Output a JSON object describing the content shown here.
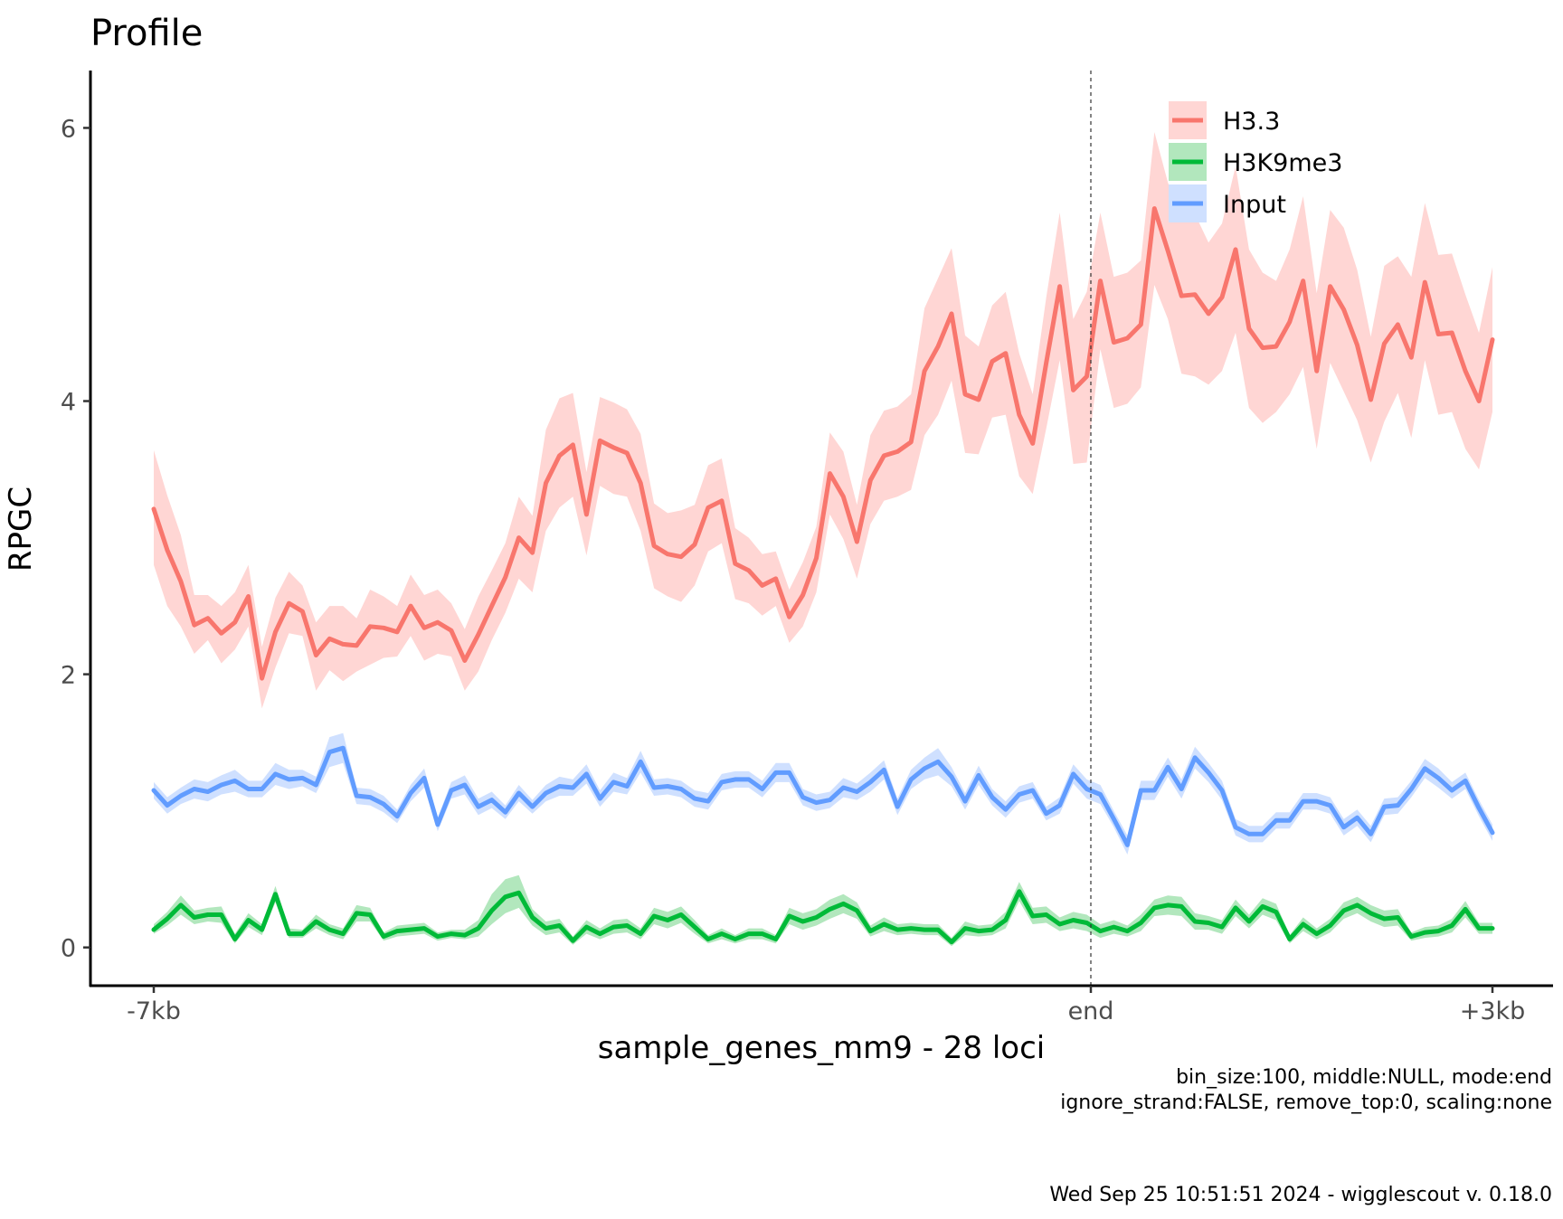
{
  "chart_data": {
    "type": "line",
    "title": "Profile",
    "xlabel": "sample_genes_mm9 - 28 loci",
    "ylabel": "RPGC",
    "x_range": [
      0,
      100
    ],
    "ylim": [
      -0.28,
      6.42
    ],
    "x_ticks": [
      {
        "x": 0,
        "label": "-7kb"
      },
      {
        "x": 70,
        "label": "end"
      },
      {
        "x": 100,
        "label": "+3kb"
      }
    ],
    "y_ticks": [
      0,
      2,
      4,
      6
    ],
    "reference_line": {
      "x": 70,
      "label": "end",
      "style": "dashed"
    },
    "grid": false,
    "legend": {
      "position": "top-right",
      "entries": [
        "H3.3",
        "H3K9me3",
        "Input"
      ]
    },
    "series": [
      {
        "name": "H3.3",
        "color": "#F8766D",
        "band_color": "#FFD6D4",
        "values": [
          3.21,
          2.91,
          2.68,
          2.36,
          2.41,
          2.3,
          2.38,
          2.57,
          1.97,
          2.31,
          2.52,
          2.46,
          2.14,
          2.26,
          2.22,
          2.21,
          2.35,
          2.34,
          2.31,
          2.5,
          2.34,
          2.38,
          2.32,
          2.1,
          2.29,
          2.5,
          2.71,
          3.0,
          2.89,
          3.4,
          3.6,
          3.68,
          3.17,
          3.71,
          3.66,
          3.62,
          3.4,
          2.94,
          2.88,
          2.86,
          2.95,
          3.22,
          3.27,
          2.81,
          2.76,
          2.65,
          2.7,
          2.42,
          2.58,
          2.85,
          3.47,
          3.3,
          2.97,
          3.42,
          3.6,
          3.63,
          3.7,
          4.22,
          4.4,
          4.64,
          4.05,
          4.01,
          4.29,
          4.35,
          3.9,
          3.69,
          4.28,
          4.84,
          4.08,
          4.18,
          4.88,
          4.43,
          4.46,
          4.56,
          5.41,
          5.1,
          4.77,
          4.78,
          4.64,
          4.76,
          5.11,
          4.53,
          4.39,
          4.4,
          4.58,
          4.88,
          4.22,
          4.84,
          4.67,
          4.41,
          4.01,
          4.42,
          4.56,
          4.32,
          4.87,
          4.49,
          4.5,
          4.22,
          4.0,
          4.45
        ],
        "lower": [
          2.8,
          2.5,
          2.35,
          2.15,
          2.25,
          2.08,
          2.18,
          2.35,
          1.75,
          2.05,
          2.3,
          2.28,
          1.88,
          2.03,
          1.95,
          2.02,
          2.07,
          2.12,
          2.13,
          2.28,
          2.1,
          2.15,
          2.13,
          1.88,
          2.02,
          2.25,
          2.45,
          2.7,
          2.6,
          3.05,
          3.22,
          3.3,
          2.87,
          3.38,
          3.32,
          3.3,
          3.05,
          2.63,
          2.57,
          2.53,
          2.65,
          2.9,
          2.96,
          2.55,
          2.52,
          2.43,
          2.5,
          2.23,
          2.35,
          2.6,
          3.17,
          2.99,
          2.7,
          3.1,
          3.27,
          3.3,
          3.35,
          3.75,
          3.9,
          4.15,
          3.62,
          3.61,
          3.88,
          3.9,
          3.45,
          3.32,
          3.8,
          4.3,
          3.54,
          3.55,
          4.38,
          3.95,
          3.98,
          4.1,
          4.85,
          4.6,
          4.2,
          4.18,
          4.12,
          4.22,
          4.5,
          3.95,
          3.84,
          3.92,
          4.05,
          4.25,
          3.65,
          4.28,
          4.07,
          3.86,
          3.55,
          3.85,
          4.06,
          3.73,
          4.3,
          3.9,
          3.92,
          3.65,
          3.5,
          3.92
        ],
        "upper": [
          3.64,
          3.31,
          3.02,
          2.58,
          2.58,
          2.5,
          2.6,
          2.8,
          2.2,
          2.56,
          2.75,
          2.65,
          2.38,
          2.5,
          2.5,
          2.41,
          2.62,
          2.57,
          2.5,
          2.73,
          2.58,
          2.62,
          2.52,
          2.33,
          2.57,
          2.76,
          2.96,
          3.3,
          3.16,
          3.79,
          4.02,
          4.06,
          3.48,
          4.03,
          3.99,
          3.94,
          3.76,
          3.25,
          3.18,
          3.2,
          3.24,
          3.53,
          3.58,
          3.07,
          3.0,
          2.88,
          2.9,
          2.62,
          2.82,
          3.08,
          3.77,
          3.63,
          3.24,
          3.75,
          3.93,
          3.96,
          4.05,
          4.68,
          4.9,
          5.12,
          4.48,
          4.4,
          4.7,
          4.8,
          4.35,
          4.05,
          4.76,
          5.38,
          4.6,
          4.8,
          5.38,
          4.91,
          4.94,
          5.03,
          5.97,
          5.6,
          5.34,
          5.37,
          5.16,
          5.3,
          5.72,
          5.11,
          4.94,
          4.88,
          5.11,
          5.5,
          4.79,
          5.4,
          5.27,
          4.96,
          4.47,
          4.99,
          5.06,
          4.91,
          5.45,
          5.07,
          5.08,
          4.78,
          4.5,
          4.98
        ]
      },
      {
        "name": "H3K9me3",
        "color": "#00BA38",
        "band_color": "#B2E7BD",
        "values": [
          0.13,
          0.21,
          0.31,
          0.22,
          0.24,
          0.24,
          0.06,
          0.2,
          0.13,
          0.39,
          0.1,
          0.1,
          0.19,
          0.13,
          0.1,
          0.25,
          0.24,
          0.08,
          0.12,
          0.13,
          0.14,
          0.08,
          0.1,
          0.09,
          0.14,
          0.27,
          0.37,
          0.4,
          0.22,
          0.14,
          0.16,
          0.05,
          0.15,
          0.1,
          0.15,
          0.16,
          0.1,
          0.23,
          0.2,
          0.24,
          0.15,
          0.06,
          0.1,
          0.06,
          0.1,
          0.1,
          0.06,
          0.23,
          0.19,
          0.22,
          0.28,
          0.32,
          0.27,
          0.12,
          0.17,
          0.13,
          0.14,
          0.13,
          0.13,
          0.04,
          0.14,
          0.12,
          0.13,
          0.2,
          0.41,
          0.23,
          0.24,
          0.17,
          0.2,
          0.18,
          0.12,
          0.15,
          0.12,
          0.18,
          0.29,
          0.31,
          0.3,
          0.19,
          0.18,
          0.15,
          0.29,
          0.19,
          0.3,
          0.26,
          0.06,
          0.17,
          0.1,
          0.16,
          0.27,
          0.31,
          0.25,
          0.21,
          0.22,
          0.08,
          0.11,
          0.12,
          0.16,
          0.28,
          0.14,
          0.14
        ],
        "lower": [
          0.1,
          0.16,
          0.24,
          0.17,
          0.19,
          0.18,
          0.03,
          0.15,
          0.09,
          0.33,
          0.07,
          0.07,
          0.14,
          0.09,
          0.06,
          0.19,
          0.19,
          0.05,
          0.08,
          0.09,
          0.1,
          0.05,
          0.07,
          0.06,
          0.08,
          0.17,
          0.25,
          0.29,
          0.16,
          0.09,
          0.11,
          0.02,
          0.1,
          0.06,
          0.1,
          0.11,
          0.06,
          0.17,
          0.14,
          0.18,
          0.1,
          0.03,
          0.06,
          0.03,
          0.06,
          0.06,
          0.03,
          0.17,
          0.13,
          0.16,
          0.21,
          0.25,
          0.21,
          0.08,
          0.12,
          0.09,
          0.1,
          0.09,
          0.09,
          0.01,
          0.09,
          0.08,
          0.09,
          0.14,
          0.34,
          0.17,
          0.18,
          0.12,
          0.14,
          0.12,
          0.07,
          0.1,
          0.08,
          0.12,
          0.23,
          0.24,
          0.23,
          0.13,
          0.13,
          0.1,
          0.23,
          0.14,
          0.24,
          0.2,
          0.03,
          0.12,
          0.06,
          0.11,
          0.21,
          0.25,
          0.19,
          0.15,
          0.16,
          0.05,
          0.07,
          0.08,
          0.11,
          0.22,
          0.1,
          0.1
        ],
        "upper": [
          0.17,
          0.26,
          0.38,
          0.27,
          0.29,
          0.3,
          0.1,
          0.25,
          0.17,
          0.45,
          0.14,
          0.13,
          0.24,
          0.17,
          0.14,
          0.31,
          0.29,
          0.11,
          0.16,
          0.17,
          0.18,
          0.11,
          0.13,
          0.13,
          0.2,
          0.39,
          0.5,
          0.53,
          0.28,
          0.19,
          0.21,
          0.08,
          0.2,
          0.14,
          0.2,
          0.21,
          0.14,
          0.29,
          0.26,
          0.3,
          0.2,
          0.09,
          0.14,
          0.09,
          0.14,
          0.14,
          0.09,
          0.29,
          0.25,
          0.28,
          0.35,
          0.39,
          0.33,
          0.16,
          0.22,
          0.17,
          0.18,
          0.17,
          0.17,
          0.07,
          0.19,
          0.16,
          0.17,
          0.26,
          0.48,
          0.29,
          0.3,
          0.22,
          0.26,
          0.24,
          0.17,
          0.2,
          0.16,
          0.24,
          0.35,
          0.38,
          0.37,
          0.25,
          0.23,
          0.2,
          0.35,
          0.24,
          0.36,
          0.32,
          0.09,
          0.22,
          0.14,
          0.21,
          0.33,
          0.37,
          0.31,
          0.27,
          0.28,
          0.11,
          0.15,
          0.16,
          0.21,
          0.34,
          0.18,
          0.18
        ]
      },
      {
        "name": "Input",
        "color": "#619CFF",
        "band_color": "#CFE0FF",
        "values": [
          1.15,
          1.04,
          1.11,
          1.16,
          1.14,
          1.19,
          1.22,
          1.16,
          1.16,
          1.27,
          1.23,
          1.24,
          1.19,
          1.43,
          1.46,
          1.11,
          1.1,
          1.05,
          0.96,
          1.13,
          1.24,
          0.9,
          1.15,
          1.19,
          1.03,
          1.08,
          0.99,
          1.13,
          1.03,
          1.13,
          1.18,
          1.17,
          1.27,
          1.09,
          1.21,
          1.18,
          1.36,
          1.17,
          1.18,
          1.16,
          1.09,
          1.07,
          1.21,
          1.23,
          1.23,
          1.16,
          1.28,
          1.28,
          1.1,
          1.06,
          1.08,
          1.17,
          1.14,
          1.21,
          1.3,
          1.03,
          1.23,
          1.31,
          1.36,
          1.25,
          1.07,
          1.26,
          1.1,
          1.01,
          1.12,
          1.15,
          0.98,
          1.04,
          1.27,
          1.16,
          1.12,
          0.94,
          0.75,
          1.15,
          1.15,
          1.32,
          1.16,
          1.39,
          1.28,
          1.15,
          0.88,
          0.83,
          0.83,
          0.93,
          0.93,
          1.07,
          1.07,
          1.04,
          0.88,
          0.95,
          0.83,
          1.03,
          1.04,
          1.16,
          1.31,
          1.24,
          1.15,
          1.22,
          1.02,
          0.84
        ],
        "lower": [
          1.09,
          0.98,
          1.05,
          1.09,
          1.07,
          1.12,
          1.14,
          1.1,
          1.1,
          1.19,
          1.16,
          1.18,
          1.13,
          1.32,
          1.35,
          1.05,
          1.04,
          0.99,
          0.91,
          1.07,
          1.17,
          0.85,
          1.09,
          1.12,
          0.97,
          1.02,
          0.94,
          1.07,
          0.98,
          1.07,
          1.11,
          1.11,
          1.2,
          1.03,
          1.14,
          1.12,
          1.28,
          1.11,
          1.12,
          1.1,
          1.03,
          1.01,
          1.15,
          1.17,
          1.17,
          1.1,
          1.21,
          1.21,
          1.04,
          1.0,
          1.02,
          1.1,
          1.08,
          1.14,
          1.23,
          0.97,
          1.16,
          1.23,
          1.26,
          1.18,
          1.01,
          1.19,
          1.04,
          0.95,
          1.06,
          1.09,
          0.93,
          0.98,
          1.2,
          1.09,
          1.05,
          0.88,
          0.68,
          1.08,
          1.08,
          1.25,
          1.09,
          1.31,
          1.21,
          1.08,
          0.82,
          0.77,
          0.77,
          0.87,
          0.87,
          1.01,
          1.01,
          0.98,
          0.82,
          0.89,
          0.77,
          0.97,
          0.98,
          1.1,
          1.24,
          1.17,
          1.09,
          1.16,
          0.96,
          0.78
        ],
        "upper": [
          1.21,
          1.1,
          1.17,
          1.23,
          1.21,
          1.26,
          1.3,
          1.22,
          1.22,
          1.35,
          1.3,
          1.3,
          1.25,
          1.54,
          1.57,
          1.17,
          1.16,
          1.11,
          1.01,
          1.19,
          1.31,
          0.95,
          1.21,
          1.26,
          1.09,
          1.14,
          1.04,
          1.19,
          1.08,
          1.19,
          1.25,
          1.23,
          1.34,
          1.15,
          1.28,
          1.24,
          1.44,
          1.23,
          1.24,
          1.22,
          1.15,
          1.13,
          1.27,
          1.29,
          1.29,
          1.22,
          1.35,
          1.35,
          1.16,
          1.12,
          1.14,
          1.24,
          1.2,
          1.28,
          1.37,
          1.09,
          1.3,
          1.39,
          1.46,
          1.32,
          1.13,
          1.33,
          1.16,
          1.07,
          1.18,
          1.21,
          1.03,
          1.1,
          1.34,
          1.23,
          1.19,
          1.0,
          0.82,
          1.22,
          1.22,
          1.39,
          1.23,
          1.47,
          1.35,
          1.22,
          0.94,
          0.89,
          0.89,
          0.99,
          0.99,
          1.13,
          1.13,
          1.1,
          0.94,
          1.01,
          0.89,
          1.09,
          1.1,
          1.22,
          1.38,
          1.31,
          1.21,
          1.28,
          1.08,
          0.9
        ]
      }
    ],
    "caption_lines": [
      "bin_size:100, middle:NULL, mode:end",
      "ignore_strand:FALSE, remove_top:0, scaling:none"
    ],
    "footer": "Wed Sep 25 10:51:51 2024 - wigglescout v. 0.18.0"
  }
}
